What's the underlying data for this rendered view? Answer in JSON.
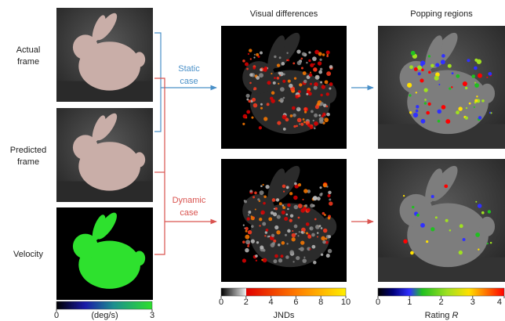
{
  "rows": [
    {
      "label_lines": [
        "Actual",
        "frame"
      ]
    },
    {
      "label_lines": [
        "Predicted",
        "frame"
      ]
    },
    {
      "label_lines": [
        "Velocity"
      ]
    }
  ],
  "columns": [
    {
      "title": "Visual differences"
    },
    {
      "title": "Popping regions"
    }
  ],
  "cases": [
    {
      "label_lines": [
        "Static",
        "case"
      ],
      "color": "#4a90c8"
    },
    {
      "label_lines": [
        "Dynamic",
        "case"
      ],
      "color": "#d9534f"
    }
  ],
  "colorbars": [
    {
      "ticks": [
        0,
        3
      ],
      "unit": "(deg/s)"
    },
    {
      "ticks": [
        0,
        2,
        4,
        6,
        8,
        10
      ],
      "label": "JNDs"
    },
    {
      "ticks": [
        0,
        1,
        2,
        3,
        4
      ],
      "label": "Rating",
      "symbol": "R"
    }
  ]
}
